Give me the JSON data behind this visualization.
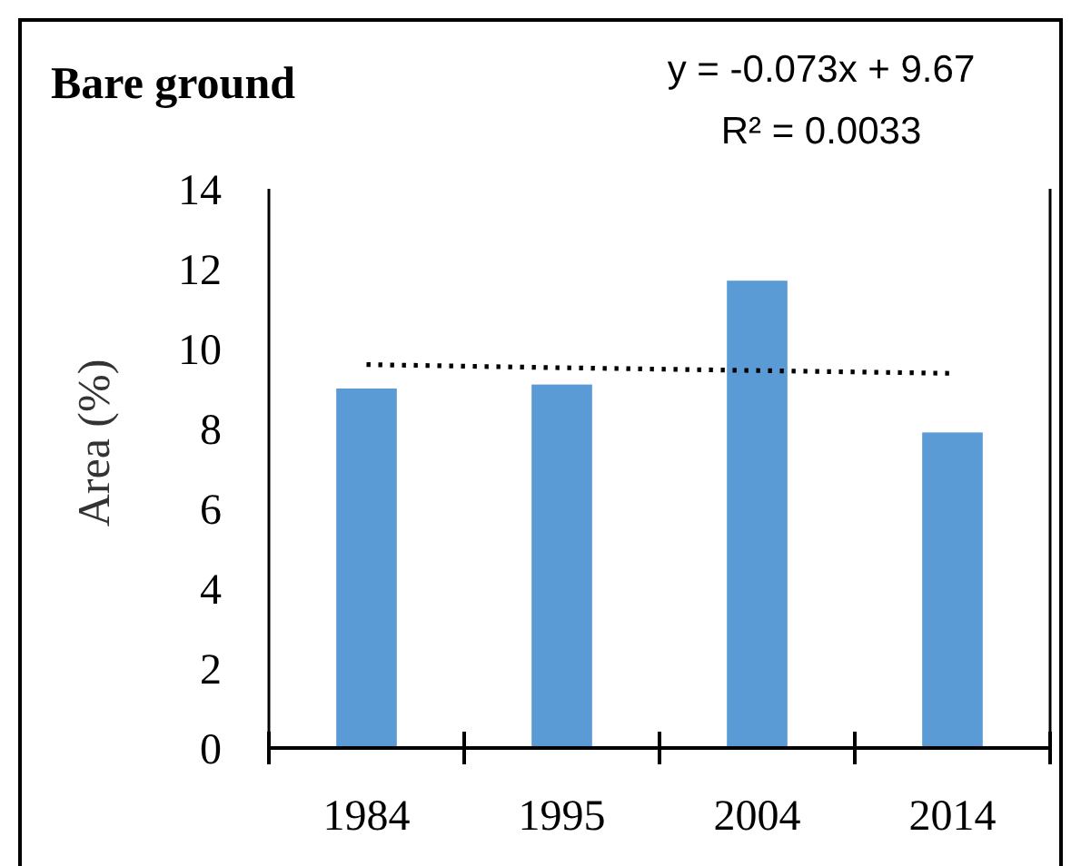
{
  "chart_data": {
    "type": "bar",
    "title": "Bare ground",
    "ylabel": "Area (%)",
    "annotations": [
      "y = -0.073x + 9.67",
      "R² = 0.0033"
    ],
    "categories": [
      "1984",
      "1995",
      "2004",
      "2014"
    ],
    "series": [
      {
        "color": "#5b9bd5",
        "values": [
          9.0,
          9.1,
          11.7,
          7.9
        ]
      },
      {
        "type": "line",
        "color": "#000000",
        "line_style": "dotted",
        "values": [
          9.6,
          9.52,
          9.45,
          9.38
        ]
      }
    ],
    "ylim": [
      0,
      14
    ],
    "yticks": [
      0,
      2,
      4,
      6,
      8,
      10,
      12,
      14
    ],
    "grid": false
  }
}
